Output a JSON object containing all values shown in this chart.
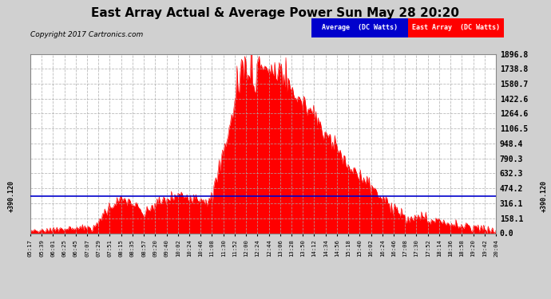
{
  "title": "East Array Actual & Average Power Sun May 28 20:20",
  "copyright": "Copyright 2017 Cartronics.com",
  "ylabel_right_vals": [
    1896.8,
    1738.8,
    1580.7,
    1422.6,
    1264.6,
    1106.5,
    948.4,
    790.3,
    632.3,
    474.2,
    316.1,
    158.1,
    0.0
  ],
  "ymax": 1896.8,
  "ymin": 0.0,
  "avg_line_value": 390.12,
  "avg_line_color": "#0000cc",
  "east_array_color": "#ff0000",
  "plot_bg_color": "#ffffff",
  "fig_bg": "#d0d0d0",
  "grid_color": "#aaaaaa",
  "legend_avg_color": "#0000cc",
  "legend_east_color": "#ff0000",
  "x_tick_labels": [
    "05:17",
    "05:39",
    "06:01",
    "06:25",
    "06:45",
    "07:07",
    "07:29",
    "07:51",
    "08:15",
    "08:35",
    "08:57",
    "09:20",
    "09:40",
    "10:02",
    "10:24",
    "10:46",
    "11:08",
    "11:30",
    "11:52",
    "12:00",
    "12:24",
    "12:44",
    "13:06",
    "13:28",
    "13:50",
    "14:12",
    "14:34",
    "14:56",
    "15:18",
    "15:40",
    "16:02",
    "16:24",
    "16:46",
    "17:08",
    "17:30",
    "17:52",
    "18:14",
    "18:36",
    "18:58",
    "19:20",
    "19:42",
    "20:04"
  ],
  "n_points": 420
}
